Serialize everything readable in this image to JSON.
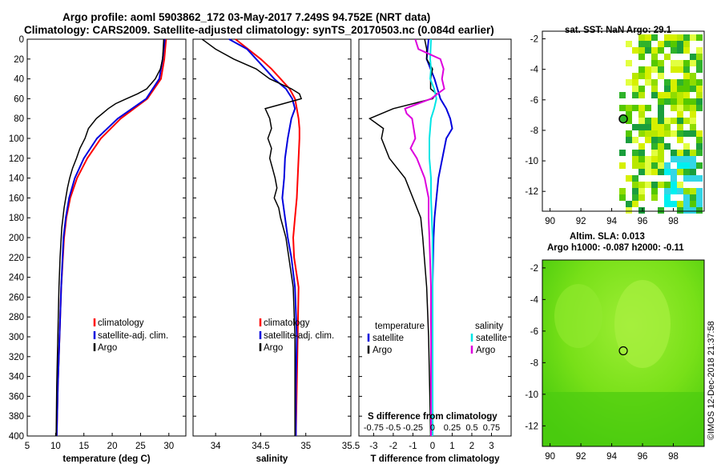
{
  "header": {
    "title_line1": "Argo profile: aoml 5903862_172 03-May-2017 7.249S 94.752E (NRT data)",
    "title_line2": "Climatology: CARS2009. Satellite-adjusted climatology: synTS_20170503.nc (0.084d earlier)"
  },
  "maps": {
    "sst_title": "sat. SST: NaN Argo: 29.1",
    "sla_title1": "Altim. SLA: 0.013",
    "sla_title2": "Argo h1000: -0.087 h2000: -0.11",
    "lat_ticks": [
      -2,
      -4,
      -6,
      -8,
      -10,
      -12
    ],
    "lon_ticks": [
      90,
      92,
      94,
      96,
      98
    ],
    "lon_range": [
      89.5,
      100
    ],
    "lat_range": [
      -1.5,
      -13.3
    ],
    "argo_lon": 94.752,
    "argo_lat": -7.249
  },
  "credit": "©IMOS 12-Dec-2018 21:37:58",
  "colors": {
    "climatology": "#ff0000",
    "satellite": "#0000dd",
    "argo": "#000000",
    "s_satellite": "#00e5e5",
    "s_argo": "#dd00dd"
  },
  "chart_data": [
    {
      "type": "line",
      "name": "temperature",
      "xlabel": "temperature (deg C)",
      "ylabel": "",
      "xlim": [
        5,
        33
      ],
      "ylim": [
        400,
        0
      ],
      "xticks": [
        5,
        10,
        15,
        20,
        25,
        30
      ],
      "yticks": [
        0,
        20,
        40,
        60,
        80,
        100,
        120,
        140,
        160,
        180,
        200,
        220,
        240,
        260,
        280,
        300,
        320,
        340,
        360,
        380,
        400
      ],
      "legend": [
        "climatology",
        "satellite-adj. clim.",
        "Argo"
      ],
      "legend_position": "lower-right",
      "series": [
        {
          "name": "climatology",
          "color": "#ff0000",
          "depth": [
            0,
            20,
            40,
            60,
            80,
            100,
            120,
            140,
            160,
            180,
            200,
            250,
            300,
            350,
            400
          ],
          "values": [
            29.5,
            29.2,
            28.6,
            26.2,
            21.5,
            18.0,
            15.6,
            13.8,
            12.6,
            11.9,
            11.5,
            11.0,
            10.7,
            10.4,
            10.2
          ]
        },
        {
          "name": "satellite-adj. clim.",
          "color": "#0000dd",
          "depth": [
            0,
            20,
            40,
            60,
            80,
            100,
            120,
            140,
            160,
            180,
            200,
            250,
            300,
            350,
            400
          ],
          "values": [
            29.3,
            28.9,
            28.3,
            26.0,
            21.0,
            17.3,
            15.0,
            13.4,
            12.4,
            11.8,
            11.4,
            11.0,
            10.7,
            10.4,
            10.2
          ]
        },
        {
          "name": "Argo",
          "color": "#000000",
          "depth": [
            0,
            10,
            20,
            30,
            40,
            50,
            55,
            60,
            65,
            70,
            80,
            90,
            100,
            110,
            120,
            130,
            140,
            150,
            160,
            170,
            180,
            190,
            200,
            220,
            250,
            300,
            350,
            400
          ],
          "values": [
            29.1,
            29.0,
            28.9,
            28.5,
            27.6,
            26.1,
            24.5,
            22.5,
            20.6,
            19.3,
            17.2,
            15.8,
            15.2,
            14.3,
            13.7,
            13.0,
            12.5,
            12.1,
            11.8,
            11.5,
            11.3,
            11.1,
            11.0,
            10.8,
            10.6,
            10.4,
            10.2,
            10.1
          ]
        }
      ]
    },
    {
      "type": "line",
      "name": "salinity",
      "xlabel": "salinity",
      "ylabel": "",
      "xlim": [
        33.75,
        35.5
      ],
      "ylim": [
        400,
        0
      ],
      "xticks": [
        34,
        34.5,
        35,
        35.5
      ],
      "legend": [
        "climatology",
        "satellite-adj. clim.",
        "Argo"
      ],
      "legend_position": "lower-right",
      "series": [
        {
          "name": "climatology",
          "color": "#ff0000",
          "depth": [
            0,
            10,
            20,
            30,
            40,
            50,
            60,
            70,
            80,
            90,
            100,
            120,
            140,
            160,
            180,
            200,
            220,
            250,
            300,
            350,
            400
          ],
          "values": [
            34.22,
            34.36,
            34.5,
            34.62,
            34.72,
            34.82,
            34.88,
            34.9,
            34.92,
            34.93,
            34.93,
            34.92,
            34.91,
            34.9,
            34.88,
            34.86,
            34.87,
            34.92,
            34.91,
            34.9,
            34.89
          ]
        },
        {
          "name": "satellite-adj. clim.",
          "color": "#0000dd",
          "depth": [
            0,
            5,
            10,
            20,
            30,
            40,
            50,
            60,
            70,
            80,
            100,
            120,
            140,
            160,
            180,
            200,
            220,
            250,
            300,
            350,
            400
          ],
          "values": [
            34.15,
            34.25,
            34.35,
            34.45,
            34.55,
            34.65,
            34.78,
            34.85,
            34.88,
            34.84,
            34.8,
            34.77,
            34.76,
            34.74,
            34.77,
            34.8,
            34.84,
            34.88,
            34.9,
            34.89,
            34.89
          ]
        },
        {
          "name": "Argo",
          "color": "#000000",
          "depth": [
            0,
            10,
            20,
            30,
            40,
            45,
            50,
            55,
            60,
            65,
            70,
            80,
            90,
            100,
            110,
            120,
            130,
            140,
            150,
            160,
            170,
            180,
            200,
            250,
            300,
            350,
            400
          ],
          "values": [
            33.85,
            34.0,
            34.2,
            34.45,
            34.6,
            34.72,
            34.84,
            34.93,
            34.95,
            34.75,
            34.55,
            34.6,
            34.62,
            34.58,
            34.62,
            34.6,
            34.63,
            34.66,
            34.68,
            34.65,
            34.7,
            34.72,
            34.78,
            34.86,
            34.88,
            34.88,
            34.88
          ]
        }
      ]
    },
    {
      "type": "line",
      "name": "differences",
      "xlabel": "T difference from climatology",
      "top_axis_label": "S difference from climatology",
      "xlim": [
        -3.75,
        4
      ],
      "ylim": [
        400,
        0
      ],
      "xticks": [
        -3,
        -2,
        -1,
        0,
        1,
        2,
        3
      ],
      "top_xticks": [
        "-0.75",
        "-0.5",
        "-0.25",
        "0",
        "0.25",
        "0.5",
        "0.75"
      ],
      "legend_temperature_title": "temperature",
      "legend_salinity_title": "salinity",
      "legend_temperature": [
        "satellite",
        "Argo"
      ],
      "legend_salinity": [
        "satellite",
        "Argo"
      ],
      "series": [
        {
          "name": "T satellite",
          "color": "#0000dd",
          "depth": [
            0,
            20,
            40,
            60,
            70,
            80,
            90,
            100,
            120,
            140,
            160,
            180,
            200,
            250,
            300,
            400
          ],
          "values": [
            -0.2,
            -0.3,
            0.1,
            0.4,
            0.7,
            0.9,
            1.0,
            0.7,
            0.5,
            0.3,
            0.2,
            0.1,
            0.05,
            0.0,
            0.0,
            0.0
          ]
        },
        {
          "name": "T Argo",
          "color": "#000000",
          "depth": [
            0,
            10,
            20,
            30,
            40,
            50,
            55,
            60,
            70,
            80,
            90,
            100,
            120,
            140,
            160,
            180,
            200,
            250,
            300,
            350,
            400
          ],
          "values": [
            -0.4,
            -0.3,
            -0.3,
            0.0,
            -0.1,
            -0.1,
            0.2,
            0.0,
            -2.0,
            -3.2,
            -2.5,
            -2.6,
            -2.2,
            -1.4,
            -1.0,
            -0.6,
            -0.5,
            -0.3,
            -0.2,
            -0.15,
            -0.1
          ]
        },
        {
          "name": "S satellite",
          "color": "#00e5e5",
          "depth": [
            0,
            20,
            30,
            40,
            50,
            60,
            70,
            80,
            100,
            120,
            140,
            160,
            180,
            200,
            250,
            300,
            400
          ],
          "values": [
            -0.02,
            -0.03,
            -0.02,
            -0.03,
            0.02,
            0.05,
            0.02,
            -0.02,
            -0.04,
            -0.04,
            -0.02,
            -0.02,
            -0.01,
            0.0,
            0.0,
            0.0,
            0.0
          ]
        },
        {
          "name": "S Argo",
          "color": "#dd00dd",
          "depth": [
            0,
            5,
            10,
            20,
            30,
            40,
            50,
            60,
            70,
            75,
            80,
            90,
            95,
            100,
            110,
            120,
            140,
            160,
            180,
            200,
            250,
            300,
            400
          ],
          "values": [
            -0.22,
            -0.2,
            -0.18,
            0.1,
            0.14,
            0.12,
            0.15,
            -0.02,
            -0.35,
            -0.33,
            -0.26,
            -0.24,
            -0.23,
            -0.22,
            -0.28,
            -0.2,
            -0.1,
            -0.05,
            -0.05,
            -0.04,
            -0.02,
            -0.02,
            -0.02
          ]
        }
      ]
    }
  ]
}
